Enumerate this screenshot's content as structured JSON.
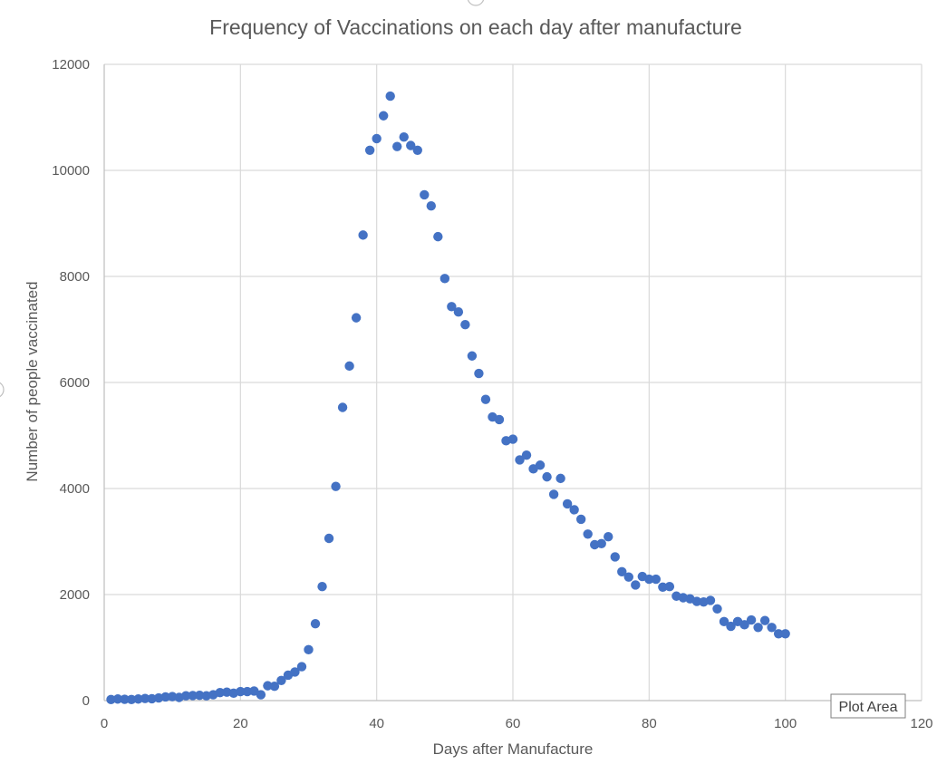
{
  "chart_data": {
    "type": "scatter",
    "title": "Frequency of Vaccinations on each day after manufacture",
    "xlabel": "Days after Manufacture",
    "ylabel": "Number of people vaccinated",
    "xlim": [
      0,
      120
    ],
    "ylim": [
      0,
      12000
    ],
    "x_ticks": [
      "0",
      "20",
      "40",
      "60",
      "80",
      "100",
      "120"
    ],
    "y_ticks": [
      "0",
      "2000",
      "4000",
      "6000",
      "8000",
      "10000",
      "12000"
    ],
    "grid": true,
    "legend": "none",
    "marker_color": "#4472c4",
    "series": [
      {
        "x": [
          1,
          2,
          3,
          4,
          5,
          6,
          7,
          8,
          9,
          10,
          11,
          12,
          13,
          14,
          15,
          16,
          17,
          18,
          19,
          20,
          21,
          22,
          23,
          24,
          25,
          26,
          27,
          28,
          29,
          30,
          31,
          32,
          33,
          34,
          35,
          36,
          37,
          38,
          39,
          40,
          41,
          42,
          43,
          44,
          45,
          46,
          47,
          48,
          49,
          50,
          51,
          52,
          53,
          54,
          55,
          56,
          57,
          58,
          59,
          60,
          61,
          62,
          63,
          64,
          65,
          66,
          67,
          68,
          69,
          70,
          71,
          72,
          73,
          74,
          75,
          76,
          77,
          78,
          79,
          80,
          81,
          82,
          83,
          84,
          85,
          86,
          87,
          88,
          89,
          90,
          91,
          92,
          93,
          94,
          95,
          96,
          97,
          98,
          99,
          100
        ],
        "y": [
          20,
          30,
          25,
          20,
          30,
          40,
          35,
          50,
          70,
          75,
          60,
          90,
          95,
          100,
          90,
          110,
          150,
          160,
          140,
          170,
          170,
          180,
          110,
          280,
          270,
          380,
          480,
          540,
          640,
          960,
          1450,
          2150,
          3060,
          4040,
          5530,
          6310,
          7220,
          8780,
          10380,
          10600,
          11030,
          11400,
          10450,
          10630,
          10470,
          10380,
          9540,
          9330,
          8750,
          7960,
          7430,
          7330,
          7090,
          6500,
          6170,
          5680,
          5350,
          5300,
          4900,
          4930,
          4540,
          4630,
          4370,
          4440,
          4220,
          3890,
          4190,
          3710,
          3600,
          3420,
          3140,
          2940,
          2960,
          3090,
          2710,
          2430,
          2330,
          2180,
          2340,
          2290,
          2290,
          2140,
          2150,
          1970,
          1940,
          1920,
          1870,
          1860,
          1890,
          1730,
          1490,
          1400,
          1490,
          1430,
          1520,
          1380,
          1510,
          1380,
          1260,
          1260
        ]
      }
    ]
  },
  "tooltip": {
    "label": "Plot Area"
  }
}
